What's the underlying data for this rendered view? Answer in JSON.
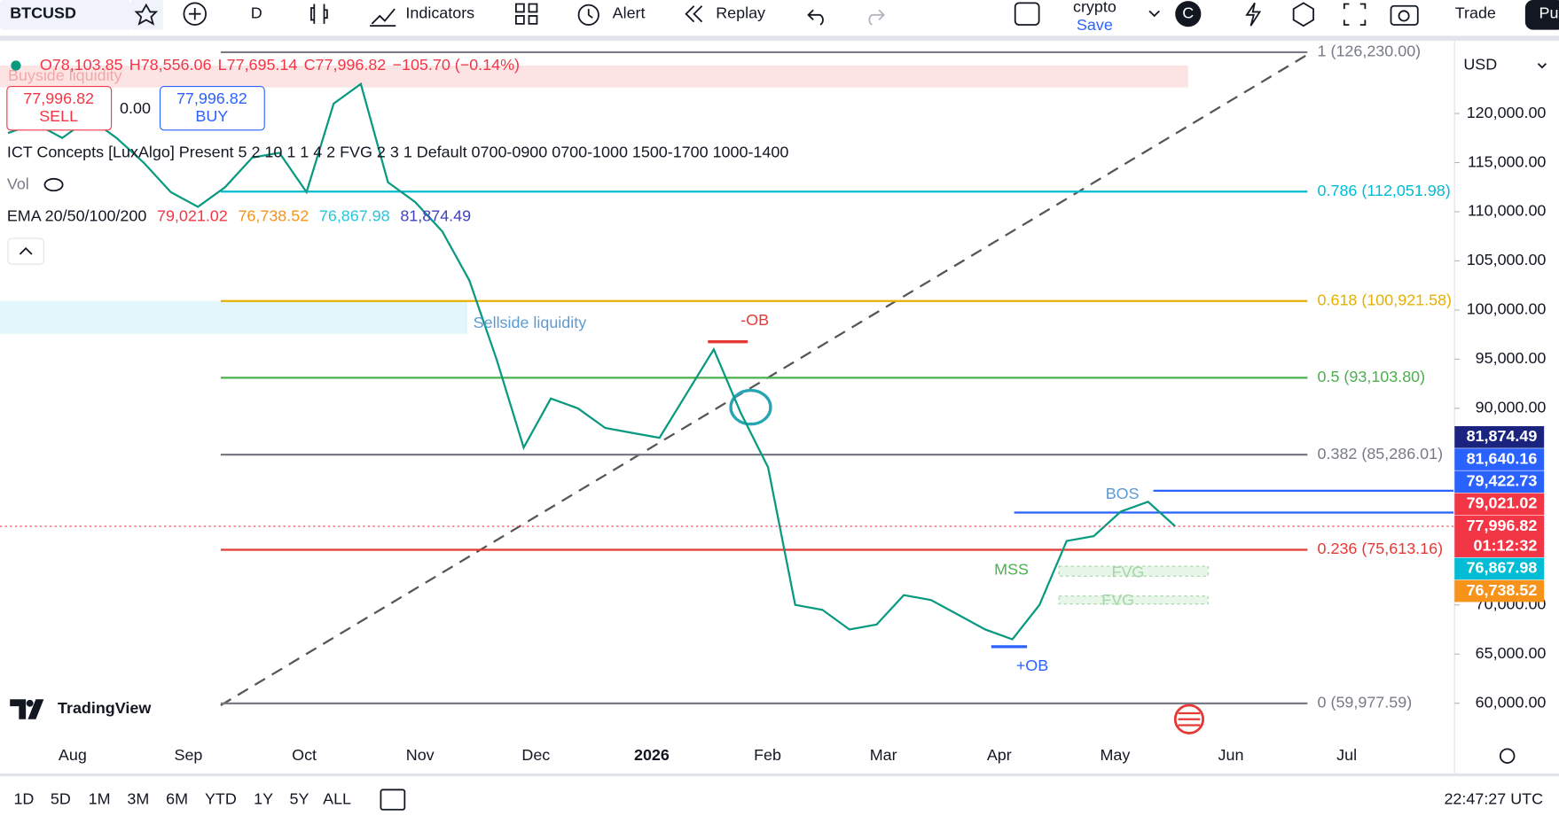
{
  "toolbar": {
    "symbol": "BTCUSD",
    "interval": "D",
    "indicators": "Indicators",
    "alert": "Alert",
    "replay": "Replay",
    "layout_name": "crypto",
    "save": "Save",
    "avatar": "C",
    "trade": "Trade",
    "publish": "Pu"
  },
  "legend": {
    "ohlc": [
      "O78,103.85",
      "H78,556.06",
      "L77,695.14",
      "C77,996.82",
      "−105.70 (−0.14%)"
    ],
    "sell_price": "77,996.82",
    "sell": "SELL",
    "spread": "0.00",
    "buy_price": "77,996.82",
    "buy": "BUY",
    "indicator": "ICT Concepts [LuxAlgo] Present 5 2 10 1 1 4 2 FVG 2 3 1 Default 0700-0900 0700-1000 1500-1700 1000-1400",
    "vol": "Vol",
    "ema_name": "EMA 20/50/100/200",
    "ema_values": [
      {
        "label": "79,021.02",
        "color": "#f23645"
      },
      {
        "label": "76,738.52",
        "color": "#f7931a"
      },
      {
        "label": "76,867.98",
        "color": "#26c6da"
      },
      {
        "label": "81,874.49",
        "color": "#3f3fbf"
      }
    ]
  },
  "chart_data": {
    "type": "line",
    "currency": "USD",
    "color": "#089981",
    "x_labels": [
      "Aug",
      "Sep",
      "Oct",
      "Nov",
      "Dec",
      "2026",
      "Feb",
      "Mar",
      "Apr",
      "May",
      "Jun",
      "Jul"
    ],
    "values": [
      118000,
      119000,
      117500,
      119500,
      117500,
      115000,
      112000,
      110500,
      112500,
      115500,
      116000,
      112000,
      121000,
      123000,
      113000,
      111000,
      108000,
      103000,
      95000,
      86000,
      91000,
      90000,
      88000,
      87500,
      87000,
      91500,
      96000,
      89500,
      84000,
      70000,
      69500,
      67500,
      68000,
      71000,
      70500,
      69000,
      67500,
      66500,
      70000,
      76500,
      77000,
      79500,
      80500,
      77996.82
    ],
    "ylim": [
      56250,
      127500
    ],
    "yticks": [
      {
        "value": 60000,
        "label": "60,000.00"
      },
      {
        "value": 65000,
        "label": "65,000.00"
      },
      {
        "value": 70000,
        "label": "70,000.00"
      },
      {
        "value": 90000,
        "label": "90,000.00"
      },
      {
        "value": 95000,
        "label": "95,000.00"
      },
      {
        "value": 100000,
        "label": "100,000.00"
      },
      {
        "value": 105000,
        "label": "105,000.00"
      },
      {
        "value": 110000,
        "label": "110,000.00"
      },
      {
        "value": 115000,
        "label": "115,000.00"
      },
      {
        "value": 120000,
        "label": "120,000.00"
      }
    ],
    "fib_levels": [
      {
        "value": 126230,
        "label": "1 (126,230.00)",
        "color": "#787b86"
      },
      {
        "value": 112051.98,
        "label": "0.786 (112,051.98)",
        "color": "#00bcd4"
      },
      {
        "value": 100921.58,
        "label": "0.618 (100,921.58)",
        "color": "#e6b000"
      },
      {
        "value": 93103.8,
        "label": "0.5 (93,103.80)",
        "color": "#4caf50"
      },
      {
        "value": 85286.01,
        "label": "0.382 (85,286.01)",
        "color": "#787b86"
      },
      {
        "value": 75613.16,
        "label": "0.236 (75,613.16)",
        "color": "#e53935"
      },
      {
        "value": 59977.59,
        "label": "0 (59,977.59)",
        "color": "#787b86"
      }
    ],
    "current_price": 77996.82,
    "price_labels": [
      {
        "value": 81874.49,
        "label": "81,874.49",
        "color": "#1a237e"
      },
      {
        "value": 81640.16,
        "label": "81,640.16",
        "color": "#2962ff"
      },
      {
        "value": 79422.73,
        "label": "79,422.73",
        "color": "#2962ff"
      },
      {
        "value": 79021.02,
        "label": "79,021.02",
        "color": "#f23645"
      },
      {
        "value": 77996.82,
        "label": "77,996.82",
        "color": "#f23645"
      },
      {
        "value": 76867.98,
        "label": "76,867.98",
        "color": "#00bcd4"
      },
      {
        "value": 76738.52,
        "label": "76,738.52",
        "color": "#f7931a"
      }
    ],
    "countdown": "01:12:32",
    "annotations": [
      {
        "label": "Buyside liquidity",
        "color": "#f4a6a6"
      },
      {
        "label": "Sellside liquidity",
        "color": "#5b9bd5"
      },
      {
        "label": "-OB",
        "color": "#e53935"
      },
      {
        "label": "BOS",
        "color": "#5b9bd5"
      },
      {
        "label": "MSS",
        "color": "#4caf50"
      },
      {
        "label": "FVG",
        "color": "#a5d6a7"
      },
      {
        "label": "FVG",
        "color": "#a5d6a7"
      },
      {
        "label": "+OB",
        "color": "#2962ff"
      }
    ]
  },
  "logo": "TradingView",
  "bottom": {
    "ranges": [
      "1D",
      "5D",
      "1M",
      "3M",
      "6M",
      "YTD",
      "1Y",
      "5Y",
      "ALL"
    ],
    "clock": "22:47:27 UTC"
  }
}
